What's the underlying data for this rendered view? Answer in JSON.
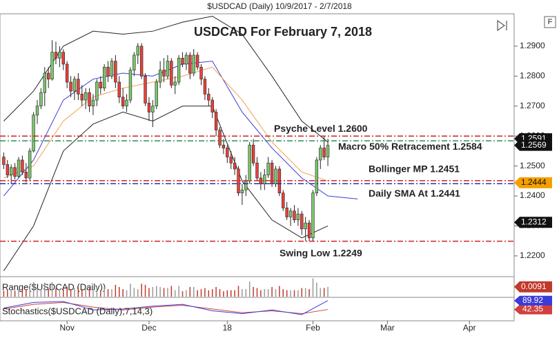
{
  "chart_data": {
    "type": "candlestick",
    "header": "$USDCAD (Daily)  10/9/2017 - 2/7/2018",
    "title": "USDCAD For February 7, 2018",
    "xlim": [
      -1,
      137
    ],
    "xticks": [
      {
        "value": 17,
        "label": "Nov"
      },
      {
        "value": 39,
        "label": "Dec"
      },
      {
        "value": 60,
        "label": "18"
      },
      {
        "value": 83,
        "label": "Feb"
      },
      {
        "value": 103,
        "label": "Mar"
      },
      {
        "value": 125,
        "label": "Apr"
      }
    ],
    "ylim": [
      1.2133,
      1.3008
    ],
    "yticks": [
      {
        "value": 1.22,
        "label": "1.2200"
      },
      {
        "value": 1.23,
        "label": "1.2300"
      },
      {
        "value": 1.24,
        "label": "1.2400"
      },
      {
        "value": 1.25,
        "label": "1.2500"
      },
      {
        "value": 1.26,
        "label": "1.2600"
      },
      {
        "value": 1.27,
        "label": "1.2700"
      },
      {
        "value": 1.28,
        "label": "1.2800"
      },
      {
        "value": 1.29,
        "label": "1.2900"
      }
    ],
    "up_color": "#7cc66c",
    "down_color": "#e8413c",
    "ohlc": [
      [
        1.253,
        1.2545,
        1.249,
        1.2505
      ],
      [
        1.2505,
        1.252,
        1.246,
        1.247
      ],
      [
        1.247,
        1.2505,
        1.244,
        1.2495
      ],
      [
        1.2495,
        1.251,
        1.2455,
        1.2465
      ],
      [
        1.2465,
        1.253,
        1.246,
        1.252
      ],
      [
        1.252,
        1.2535,
        1.247,
        1.248
      ],
      [
        1.248,
        1.251,
        1.2445,
        1.246
      ],
      [
        1.246,
        1.256,
        1.245,
        1.255
      ],
      [
        1.255,
        1.268,
        1.2545,
        1.267
      ],
      [
        1.267,
        1.272,
        1.264,
        1.27
      ],
      [
        1.27,
        1.276,
        1.269,
        1.2745
      ],
      [
        1.2745,
        1.283,
        1.27,
        1.281
      ],
      [
        1.281,
        1.283,
        1.276,
        1.279
      ],
      [
        1.279,
        1.292,
        1.2785,
        1.288
      ],
      [
        1.288,
        1.2915,
        1.284,
        1.286
      ],
      [
        1.286,
        1.29,
        1.283,
        1.288
      ],
      [
        1.288,
        1.289,
        1.282,
        1.284
      ],
      [
        1.284,
        1.285,
        1.276,
        1.278
      ],
      [
        1.278,
        1.28,
        1.273,
        1.275
      ],
      [
        1.275,
        1.28,
        1.272,
        1.279
      ],
      [
        1.279,
        1.281,
        1.272,
        1.274
      ],
      [
        1.274,
        1.277,
        1.27,
        1.272
      ],
      [
        1.272,
        1.276,
        1.269,
        1.2745
      ],
      [
        1.2745,
        1.276,
        1.268,
        1.27
      ],
      [
        1.27,
        1.274,
        1.267,
        1.272
      ],
      [
        1.272,
        1.279,
        1.27,
        1.278
      ],
      [
        1.278,
        1.28,
        1.274,
        1.276
      ],
      [
        1.276,
        1.284,
        1.275,
        1.283
      ],
      [
        1.283,
        1.285,
        1.278,
        1.28
      ],
      [
        1.28,
        1.286,
        1.279,
        1.285
      ],
      [
        1.285,
        1.287,
        1.276,
        1.278
      ],
      [
        1.278,
        1.28,
        1.271,
        1.273
      ],
      [
        1.273,
        1.276,
        1.269,
        1.27
      ],
      [
        1.27,
        1.274,
        1.268,
        1.272
      ],
      [
        1.272,
        1.283,
        1.271,
        1.282
      ],
      [
        1.282,
        1.288,
        1.28,
        1.287
      ],
      [
        1.287,
        1.291,
        1.284,
        1.29
      ],
      [
        1.29,
        1.291,
        1.279,
        1.28
      ],
      [
        1.28,
        1.281,
        1.27,
        1.271
      ],
      [
        1.271,
        1.273,
        1.265,
        1.268
      ],
      [
        1.268,
        1.272,
        1.263,
        1.27
      ],
      [
        1.27,
        1.279,
        1.269,
        1.278
      ],
      [
        1.278,
        1.285,
        1.276,
        1.282
      ],
      [
        1.282,
        1.286,
        1.278,
        1.28
      ],
      [
        1.28,
        1.287,
        1.279,
        1.285
      ],
      [
        1.285,
        1.286,
        1.276,
        1.277
      ],
      [
        1.277,
        1.28,
        1.274,
        1.278
      ],
      [
        1.278,
        1.287,
        1.277,
        1.286
      ],
      [
        1.286,
        1.288,
        1.283,
        1.284
      ],
      [
        1.284,
        1.288,
        1.282,
        1.287
      ],
      [
        1.287,
        1.288,
        1.279,
        1.281
      ],
      [
        1.281,
        1.289,
        1.28,
        1.287
      ],
      [
        1.287,
        1.288,
        1.282,
        1.283
      ],
      [
        1.283,
        1.284,
        1.277,
        1.279
      ],
      [
        1.279,
        1.28,
        1.272,
        1.274
      ],
      [
        1.274,
        1.276,
        1.27,
        1.272
      ],
      [
        1.272,
        1.273,
        1.266,
        1.268
      ],
      [
        1.268,
        1.269,
        1.26,
        1.262
      ],
      [
        1.262,
        1.263,
        1.256,
        1.257
      ],
      [
        1.257,
        1.259,
        1.254,
        1.256
      ],
      [
        1.256,
        1.257,
        1.251,
        1.253
      ],
      [
        1.253,
        1.255,
        1.249,
        1.251
      ],
      [
        1.251,
        1.253,
        1.247,
        1.249
      ],
      [
        1.249,
        1.25,
        1.24,
        1.241
      ],
      [
        1.241,
        1.244,
        1.237,
        1.242
      ],
      [
        1.242,
        1.247,
        1.24,
        1.245
      ],
      [
        1.245,
        1.258,
        1.244,
        1.257
      ],
      [
        1.257,
        1.259,
        1.25,
        1.251
      ],
      [
        1.251,
        1.253,
        1.245,
        1.246
      ],
      [
        1.246,
        1.248,
        1.242,
        1.244
      ],
      [
        1.244,
        1.249,
        1.242,
        1.247
      ],
      [
        1.247,
        1.253,
        1.246,
        1.251
      ],
      [
        1.251,
        1.252,
        1.243,
        1.244
      ],
      [
        1.244,
        1.25,
        1.243,
        1.249
      ],
      [
        1.249,
        1.25,
        1.24,
        1.241
      ],
      [
        1.241,
        1.242,
        1.235,
        1.236
      ],
      [
        1.236,
        1.238,
        1.232,
        1.233
      ],
      [
        1.233,
        1.236,
        1.23,
        1.235
      ],
      [
        1.235,
        1.237,
        1.231,
        1.232
      ],
      [
        1.232,
        1.236,
        1.23,
        1.234
      ],
      [
        1.234,
        1.235,
        1.227,
        1.229
      ],
      [
        1.229,
        1.233,
        1.225,
        1.231
      ],
      [
        1.231,
        1.232,
        1.2249,
        1.226
      ],
      [
        1.226,
        1.242,
        1.225,
        1.241
      ],
      [
        1.241,
        1.253,
        1.24,
        1.252
      ],
      [
        1.252,
        1.257,
        1.249,
        1.256
      ],
      [
        1.256,
        1.26,
        1.252,
        1.253
      ],
      [
        1.253,
        1.2591,
        1.25,
        1.2569
      ]
    ],
    "overlays": [
      {
        "color": "#222222",
        "x": [
          0,
          8,
          16,
          24,
          32,
          40,
          48,
          56,
          64,
          72,
          80,
          87
        ],
        "values": [
          1.265,
          1.275,
          1.29,
          1.295,
          1.294,
          1.295,
          1.298,
          1.3,
          1.294,
          1.28,
          1.265,
          1.258
        ]
      },
      {
        "color": "#222222",
        "x": [
          0,
          8,
          16,
          24,
          32,
          40,
          48,
          56,
          64,
          72,
          80,
          87
        ],
        "values": [
          1.215,
          1.23,
          1.255,
          1.264,
          1.268,
          1.265,
          1.27,
          1.27,
          1.245,
          1.232,
          1.226,
          1.23
        ]
      },
      {
        "color": "#3b3bd6",
        "x": [
          0,
          8,
          16,
          24,
          32,
          40,
          48,
          56,
          64,
          72,
          80,
          87,
          95
        ],
        "values": [
          1.24,
          1.252,
          1.272,
          1.279,
          1.281,
          1.28,
          1.284,
          1.285,
          1.268,
          1.256,
          1.246,
          1.24,
          1.239
        ]
      },
      {
        "color": "#f0a050",
        "x": [
          0,
          8,
          16,
          24,
          32,
          40,
          48,
          56,
          64,
          72,
          80,
          87
        ],
        "values": [
          1.246,
          1.25,
          1.265,
          1.273,
          1.276,
          1.278,
          1.28,
          1.283,
          1.272,
          1.258,
          1.248,
          1.245
        ]
      }
    ],
    "levels": [
      {
        "value": 1.26,
        "color": "#cc2222",
        "label": "Psyche Level 1.2600"
      },
      {
        "value": 1.2584,
        "color": "#2e8b57",
        "label": "Macro 50% Retracement 1.2584"
      },
      {
        "value": 1.2451,
        "color": "#cc2222",
        "label": "Bollinger MP 1.2451"
      },
      {
        "value": 1.2441,
        "color": "#2233aa",
        "label": "Daily SMA At 1.2441"
      },
      {
        "value": 1.2249,
        "color": "#cc2222",
        "label": "Swing Low 1.2249"
      }
    ],
    "price_tags": [
      {
        "value": 1.2591,
        "label": "1.2591",
        "color": "#111111"
      },
      {
        "value": 1.2569,
        "label": "1.2569",
        "color": "#111111"
      },
      {
        "value": 1.2444,
        "label": "1.2444",
        "color": "#f5a000"
      },
      {
        "value": 1.2312,
        "label": "1.2312",
        "color": "#111111"
      }
    ],
    "range_panel": {
      "label": "Range($USDCAD (Daily))",
      "ylim": [
        0,
        0.016
      ],
      "tag": 0.0091,
      "color": "#c0392b"
    },
    "stoch_panel": {
      "label": "Stochastics($USDCAD (Daily),7,14,3)",
      "ylim": [
        0,
        100
      ],
      "series": [
        {
          "color": "#3b3bd6",
          "x": [
            0,
            8,
            16,
            24,
            32,
            40,
            48,
            56,
            64,
            72,
            80,
            87
          ],
          "values": [
            50,
            80,
            85,
            40,
            45,
            60,
            70,
            35,
            20,
            40,
            15,
            89.92
          ]
        },
        {
          "color": "#d04040",
          "x": [
            0,
            8,
            16,
            24,
            32,
            40,
            48,
            56,
            64,
            72,
            80,
            87
          ],
          "values": [
            45,
            70,
            80,
            55,
            40,
            55,
            65,
            45,
            25,
            35,
            20,
            42.35
          ]
        }
      ]
    }
  }
}
